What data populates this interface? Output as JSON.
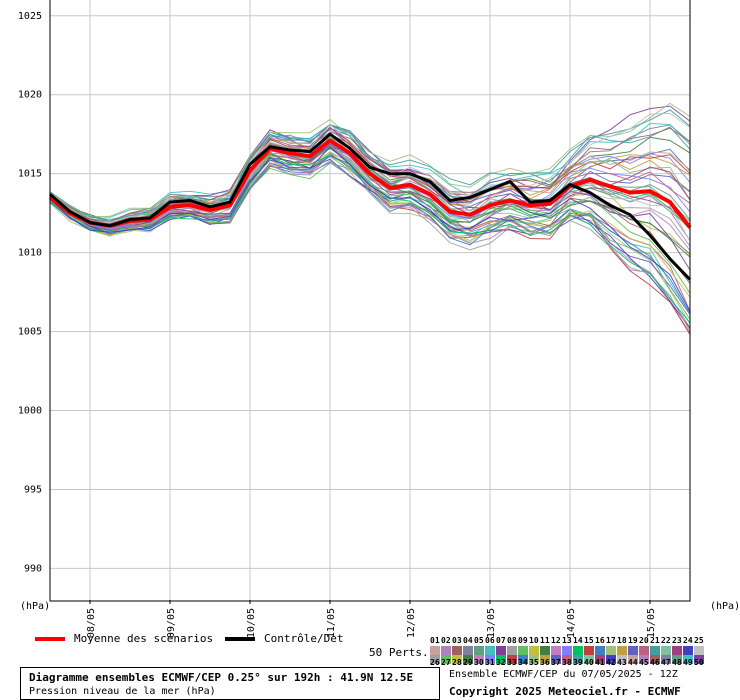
{
  "chart_data": {
    "type": "line",
    "title": "Diagramme ensembles ECMWF/CEP 0.25° sur 192h : 41.9N 12.5E",
    "subtitle": "Pression niveau de la mer (hPa)",
    "ylabel": "(hPa)",
    "ylim": [
      988,
      1026
    ],
    "yticks": [
      "1025",
      "1020",
      "1015",
      "1010",
      "1005",
      "1000",
      "995",
      "990"
    ],
    "xticks": [
      "08/05",
      "09/05",
      "10/05",
      "11/05",
      "12/05",
      "13/05",
      "14/05",
      "15/05"
    ],
    "grid": true,
    "x_hours": [
      0,
      6,
      12,
      18,
      24,
      30,
      36,
      42,
      48,
      54,
      60,
      66,
      72,
      78,
      84,
      90,
      96,
      102,
      108,
      114,
      120,
      126,
      132,
      138,
      144,
      150,
      156,
      162,
      168,
      174,
      180,
      186,
      192
    ],
    "series": [
      {
        "name": "Moyenne des scénarios",
        "color": "#ff0000",
        "values": [
          1013.5,
          1012.5,
          1011.9,
          1011.7,
          1012.0,
          1012.1,
          1012.9,
          1013.0,
          1012.7,
          1013.0,
          1015.2,
          1016.6,
          1016.3,
          1016.1,
          1017.1,
          1016.3,
          1015.0,
          1014.1,
          1014.3,
          1013.7,
          1012.6,
          1012.4,
          1013.0,
          1013.3,
          1013.0,
          1013.1,
          1014.2,
          1014.6,
          1014.2,
          1013.8,
          1013.9,
          1013.2,
          1011.6
        ]
      },
      {
        "name": "Contrôle/Det",
        "color": "#000000",
        "values": [
          1013.7,
          1012.6,
          1011.9,
          1011.7,
          1012.1,
          1012.2,
          1013.2,
          1013.3,
          1012.9,
          1013.2,
          1015.6,
          1016.7,
          1016.5,
          1016.4,
          1017.5,
          1016.6,
          1015.4,
          1015.0,
          1015.0,
          1014.5,
          1013.3,
          1013.5,
          1014.0,
          1014.5,
          1013.2,
          1013.3,
          1014.3,
          1013.8,
          1013.0,
          1012.4,
          1011.1,
          1009.6,
          1008.3
        ]
      }
    ],
    "members": {
      "label": "50 Perts.",
      "top_row": [
        "01",
        "02",
        "03",
        "04",
        "05",
        "06",
        "07",
        "08",
        "09",
        "10",
        "11",
        "12",
        "13",
        "14",
        "15",
        "16",
        "17",
        "18",
        "19",
        "20",
        "21",
        "22",
        "23",
        "24",
        "25"
      ],
      "bottom_row": [
        "26",
        "27",
        "28",
        "29",
        "30",
        "31",
        "32",
        "33",
        "34",
        "35",
        "36",
        "37",
        "38",
        "39",
        "40",
        "41",
        "42",
        "43",
        "44",
        "45",
        "46",
        "47",
        "48",
        "49",
        "50"
      ],
      "colors": [
        "#c8a0a0",
        "#b080c0",
        "#a06060",
        "#8080a0",
        "#60a080",
        "#40c0c0",
        "#8040a0",
        "#a0a0a0",
        "#60c060",
        "#c0c040",
        "#408040",
        "#c080c0",
        "#8080ff",
        "#00c060",
        "#c04040",
        "#4080c0",
        "#a0c080",
        "#c0a040",
        "#6060c0",
        "#c06080",
        "#40a0a0",
        "#80c0a0",
        "#a04080",
        "#4040c0",
        "#c0c0c0"
      ]
    }
  },
  "legend": {
    "mean_label": "Moyenne des scénarios",
    "control_label": "Contrôle/Det"
  },
  "info": {
    "run": "Ensemble ECMWF/CEP du 07/05/2025 - 12Z",
    "copyright": "Copyright 2025 Meteociel.fr - ECMWF"
  }
}
